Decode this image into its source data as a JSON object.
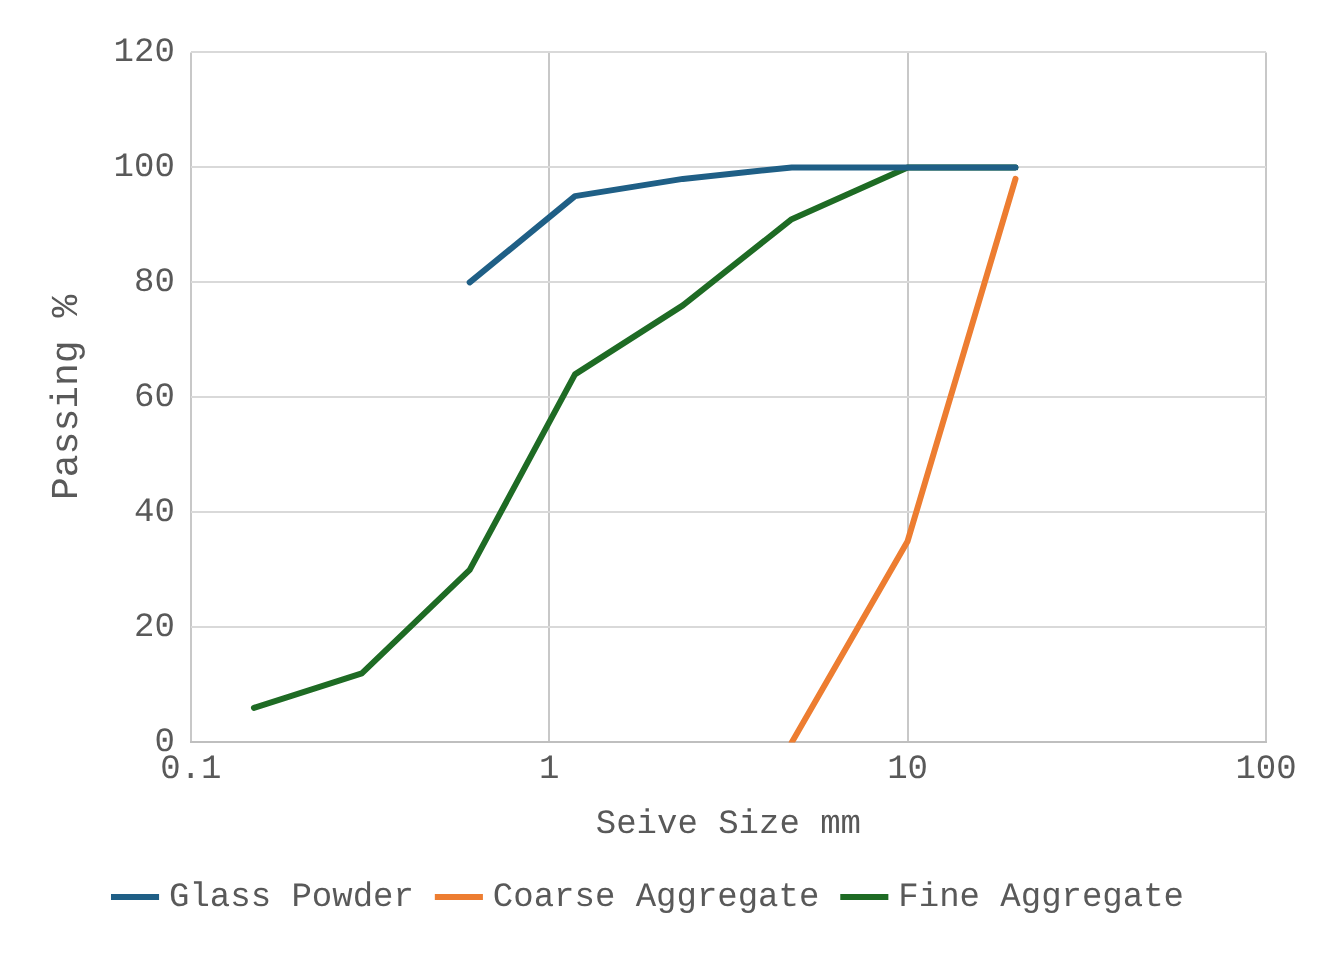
{
  "chart_data": {
    "type": "line",
    "xlabel": "Seive Size mm",
    "ylabel": "Passing %",
    "log": "x",
    "xlim": [
      0.1,
      100
    ],
    "xticks": [
      0.1,
      1,
      10,
      100
    ],
    "ylim": [
      0,
      120
    ],
    "yticks": [
      0,
      20,
      40,
      60,
      80,
      100,
      120
    ],
    "grid": true,
    "legend": "bottom",
    "marker": "none",
    "line_style": "solid",
    "series": [
      {
        "name": "Glass Powder",
        "color": "#1f5f86",
        "x": [
          0.6,
          1.18,
          2.36,
          4.75,
          10,
          20
        ],
        "values": [
          80,
          95,
          98,
          100,
          100,
          100
        ]
      },
      {
        "name": "Coarse Aggregate",
        "color": "#ed7d31",
        "x": [
          4.75,
          10,
          20
        ],
        "values": [
          0,
          35,
          98
        ]
      },
      {
        "name": "Fine Aggregate",
        "color": "#1e6b24",
        "x": [
          0.15,
          0.3,
          0.6,
          1.18,
          2.36,
          4.75,
          10,
          20
        ],
        "values": [
          6,
          12,
          30,
          64,
          76,
          91,
          100,
          100
        ]
      }
    ]
  }
}
